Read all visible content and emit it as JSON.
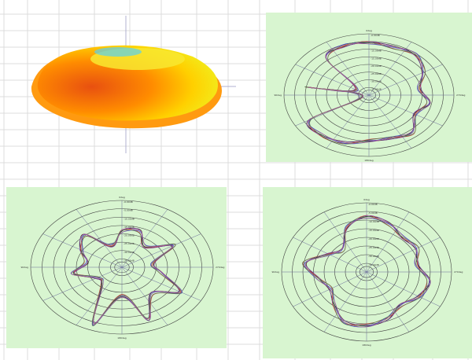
{
  "colors": {
    "panel_bg": "#d8f5d0",
    "ring": "#404040",
    "spoke": "#6a6a9a",
    "grid_line": "#dcdcdc",
    "pattern_lines": [
      "#1a1a1a",
      "#cc3333",
      "#3344cc",
      "#8844aa",
      "#557755",
      "#aa6688"
    ]
  },
  "plot_3d": {
    "label": "3D radiation pattern",
    "colors": [
      "#e85010",
      "#ff8c00",
      "#ffd000",
      "#f0f020",
      "#40c8f0"
    ]
  },
  "chart_data": [
    {
      "type": "polar",
      "id": "top-right",
      "angle_labels": [
        "0deg",
        "90deg",
        "270deg",
        "180deg"
      ],
      "radial_labels": [
        "-0.00dB",
        "-5.00dB",
        "-10.00dB",
        "-15.00dB",
        "-20.00dB",
        "-25.00dB",
        "-30.00dB",
        "-35.00dB"
      ],
      "rlim": [
        -35,
        0
      ],
      "series_count": 6,
      "angles_deg": [
        0,
        20,
        40,
        60,
        80,
        100,
        120,
        140,
        160,
        180,
        200,
        220,
        240,
        260,
        280,
        300,
        320,
        340
      ],
      "radius_db": [
        -5,
        -6,
        -5,
        -9,
        -14,
        -10,
        -13,
        -7,
        -9,
        -9,
        -6,
        -5,
        -7,
        -32,
        -9,
        -29,
        -8,
        -5
      ]
    },
    {
      "type": "polar",
      "id": "bottom-left",
      "angle_labels": [
        "0deg",
        "90deg",
        "270deg",
        "180deg"
      ],
      "radial_labels": [
        "-0.00dB",
        "-5.00dB",
        "-10.00dB",
        "-15.00dB",
        "-20.00dB",
        "-25.00dB",
        "-30.00dB",
        "-35.00dB"
      ],
      "rlim": [
        -35,
        0
      ],
      "series_count": 6,
      "angles_deg": [
        0,
        20,
        40,
        60,
        80,
        100,
        120,
        140,
        160,
        180,
        200,
        220,
        240,
        260,
        280,
        300,
        320,
        340
      ],
      "radius_db": [
        -16,
        -15,
        -21,
        -12,
        -23,
        -20,
        -9,
        -17,
        -6,
        -20,
        -3,
        -23,
        -24,
        -16,
        -21,
        -17,
        -13,
        -23
      ]
    },
    {
      "type": "polar",
      "id": "bottom-right",
      "angle_labels": [
        "0deg",
        "90deg",
        "270deg",
        "180deg"
      ],
      "radial_labels": [
        "-0.00dB",
        "-5.00dB",
        "-10.00dB",
        "-15.00dB",
        "-20.00dB",
        "-25.00dB",
        "-30.00dB",
        "-35.00dB"
      ],
      "rlim": [
        -35,
        0
      ],
      "series_count": 6,
      "angles_deg": [
        0,
        20,
        40,
        60,
        80,
        100,
        120,
        140,
        160,
        180,
        200,
        220,
        240,
        260,
        280,
        300,
        320,
        340
      ],
      "radius_db": [
        -7,
        -9,
        -12,
        -11,
        -14,
        -9,
        -10,
        -13,
        -10,
        -8,
        -8,
        -14,
        -18,
        -15,
        -9,
        -17,
        -20,
        -11
      ]
    }
  ]
}
